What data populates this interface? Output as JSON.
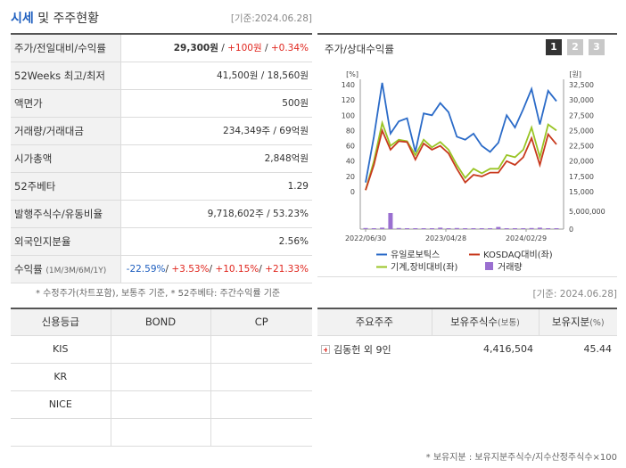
{
  "header": {
    "title_accent": "시세",
    "title_rest": " 및 주주현황",
    "date": "[기준:2024.06.28]"
  },
  "info": {
    "rows": [
      {
        "label": "주가/전일대비/수익률",
        "price": "29,300원",
        "sep1": " / ",
        "change": "+100원",
        "sep2": " / ",
        "rate": "+0.34%"
      },
      {
        "label": "52Weeks 최고/최저",
        "value": "41,500원 / 18,560원"
      },
      {
        "label": "액면가",
        "value": "500원"
      },
      {
        "label": "거래량/거래대금",
        "value": "234,349주 / 69억원"
      },
      {
        "label": "시가총액",
        "value": "2,848억원"
      },
      {
        "label": "52주베타",
        "value": "1.29"
      },
      {
        "label": "발행주식수/유동비율",
        "value": "9,718,602주 / 53.23%"
      },
      {
        "label": "외국인지분율",
        "value": "2.56%"
      },
      {
        "label": "수익률",
        "label_small": "(1M/3M/6M/1Y)",
        "r1": "-22.59%",
        "r2": "+3.53%",
        "r3": "+10.15%",
        "r4": "+21.33%",
        "slash": "/ "
      }
    ],
    "note": "* 수정주가(차트포함), 보통주 기준, * 52주베타: 주간수익률 기준"
  },
  "chart_panel": {
    "title": "주가/상대수익률",
    "tabs": [
      "1",
      "2",
      "3"
    ]
  },
  "chart_data": {
    "type": "line",
    "left_axis": {
      "unit": "[%]",
      "ticks": [
        "140",
        "120",
        "100",
        "80",
        "60",
        "40",
        "20",
        "0"
      ],
      "ylim": [
        0,
        140
      ]
    },
    "right_axis": {
      "unit": "[원]",
      "ticks": [
        "32,500",
        "30,000",
        "27,500",
        "25,000",
        "22,500",
        "20,000",
        "17,500",
        "15,000"
      ],
      "ylim": [
        15000,
        32500
      ]
    },
    "volume_axis": {
      "ticks": [
        "5,000,000",
        "0"
      ],
      "ylim": [
        0,
        5000000
      ]
    },
    "x_ticks": [
      "2022/06/30",
      "2023/04/28",
      "2024/02/29"
    ],
    "series": [
      {
        "name": "유일로보틱스",
        "color": "#2b6bc8",
        "values": [
          16500,
          24000,
          32800,
          24500,
          26500,
          27000,
          21500,
          27800,
          27500,
          29500,
          28000,
          24000,
          23500,
          24500,
          22500,
          21500,
          23000,
          27500,
          25500,
          28500,
          31800,
          26000,
          31500,
          29800
        ]
      },
      {
        "name": "KOSDAQ대비(좌)",
        "color": "#c83a1e",
        "values": [
          2,
          35,
          80,
          55,
          66,
          65,
          42,
          63,
          55,
          60,
          50,
          30,
          12,
          22,
          20,
          25,
          25,
          40,
          35,
          45,
          70,
          35,
          75,
          62
        ]
      },
      {
        "name": "기계,장비대비(좌)",
        "color": "#99c424",
        "values": [
          2,
          40,
          90,
          60,
          68,
          66,
          48,
          68,
          58,
          65,
          55,
          35,
          18,
          30,
          24,
          30,
          30,
          48,
          45,
          55,
          84,
          45,
          88,
          80
        ]
      },
      {
        "name": "거래량",
        "color": "#9a6fd0",
        "values": [
          300000,
          200000,
          400000,
          4500000,
          300000,
          200000,
          250000,
          150000,
          100000,
          400000,
          200000,
          300000,
          150000,
          250000,
          200000,
          100000,
          600000,
          150000,
          200000,
          100000,
          300000,
          400000,
          200000,
          150000
        ]
      }
    ]
  },
  "date2": "[기준: 2024.06.28]",
  "credit": {
    "headers": [
      "신용등급",
      "BOND",
      "CP"
    ],
    "rows": [
      {
        "agency": "KIS",
        "bond": "",
        "cp": ""
      },
      {
        "agency": "KR",
        "bond": "",
        "cp": ""
      },
      {
        "agency": "NICE",
        "bond": "",
        "cp": ""
      },
      {
        "agency": "",
        "bond": "",
        "cp": ""
      }
    ]
  },
  "holders": {
    "headers": {
      "h1": "주요주주",
      "h2": "보유주식수",
      "h2_small": "(보통)",
      "h3": "보유지분",
      "h3_small": "(%)"
    },
    "rows": [
      {
        "name": "김동헌 외 9인",
        "shares": "4,416,504",
        "ratio": "45.44"
      }
    ],
    "note": "* 보유지분 : 보유지분주식수/지수산정주식수×100"
  }
}
